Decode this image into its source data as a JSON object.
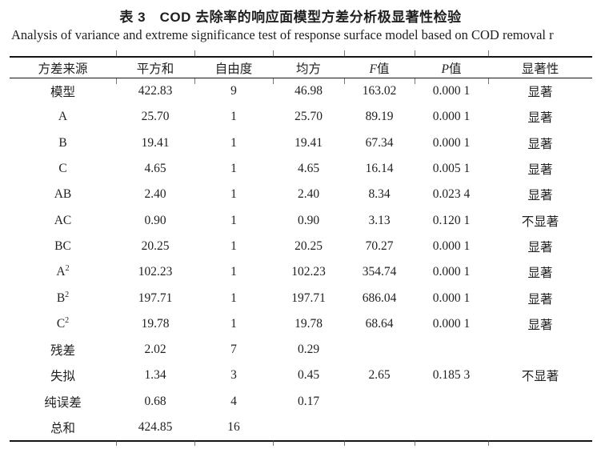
{
  "caption": {
    "title_zh": "表 3　COD 去除率的响应面模型方差分析极显著性检验",
    "subtitle_en": "Analysis of variance and extreme significance test of response surface model based on COD removal r"
  },
  "anova_table": {
    "columns": [
      "方差来源",
      "平方和",
      "自由度",
      "均方",
      "F值",
      "P值",
      "显著性"
    ],
    "rows": [
      [
        "模型",
        "422.83",
        "9",
        "46.98",
        "163.02",
        "0.000 1",
        "显著"
      ],
      [
        "A",
        "25.70",
        "1",
        "25.70",
        "89.19",
        "0.000 1",
        "显著"
      ],
      [
        "B",
        "19.41",
        "1",
        "19.41",
        "67.34",
        "0.000 1",
        "显著"
      ],
      [
        "C",
        "4.65",
        "1",
        "4.65",
        "16.14",
        "0.005 1",
        "显著"
      ],
      [
        "AB",
        "2.40",
        "1",
        "2.40",
        "8.34",
        "0.023 4",
        "显著"
      ],
      [
        "AC",
        "0.90",
        "1",
        "0.90",
        "3.13",
        "0.120 1",
        "不显著"
      ],
      [
        "BC",
        "20.25",
        "1",
        "20.25",
        "70.27",
        "0.000 1",
        "显著"
      ],
      [
        "A²",
        "102.23",
        "1",
        "102.23",
        "354.74",
        "0.000 1",
        "显著"
      ],
      [
        "B²",
        "197.71",
        "1",
        "197.71",
        "686.04",
        "0.000 1",
        "显著"
      ],
      [
        "C²",
        "19.78",
        "1",
        "19.78",
        "68.64",
        "0.000 1",
        "显著"
      ],
      [
        "残差",
        "2.02",
        "7",
        "0.29",
        "",
        "",
        ""
      ],
      [
        "失拟",
        "1.34",
        "3",
        "0.45",
        "2.65",
        "0.185 3",
        "不显著"
      ],
      [
        "纯误差",
        "0.68",
        "4",
        "0.17",
        "",
        "",
        ""
      ],
      [
        "总和",
        "424.85",
        "16",
        "",
        "",
        "",
        ""
      ]
    ]
  }
}
